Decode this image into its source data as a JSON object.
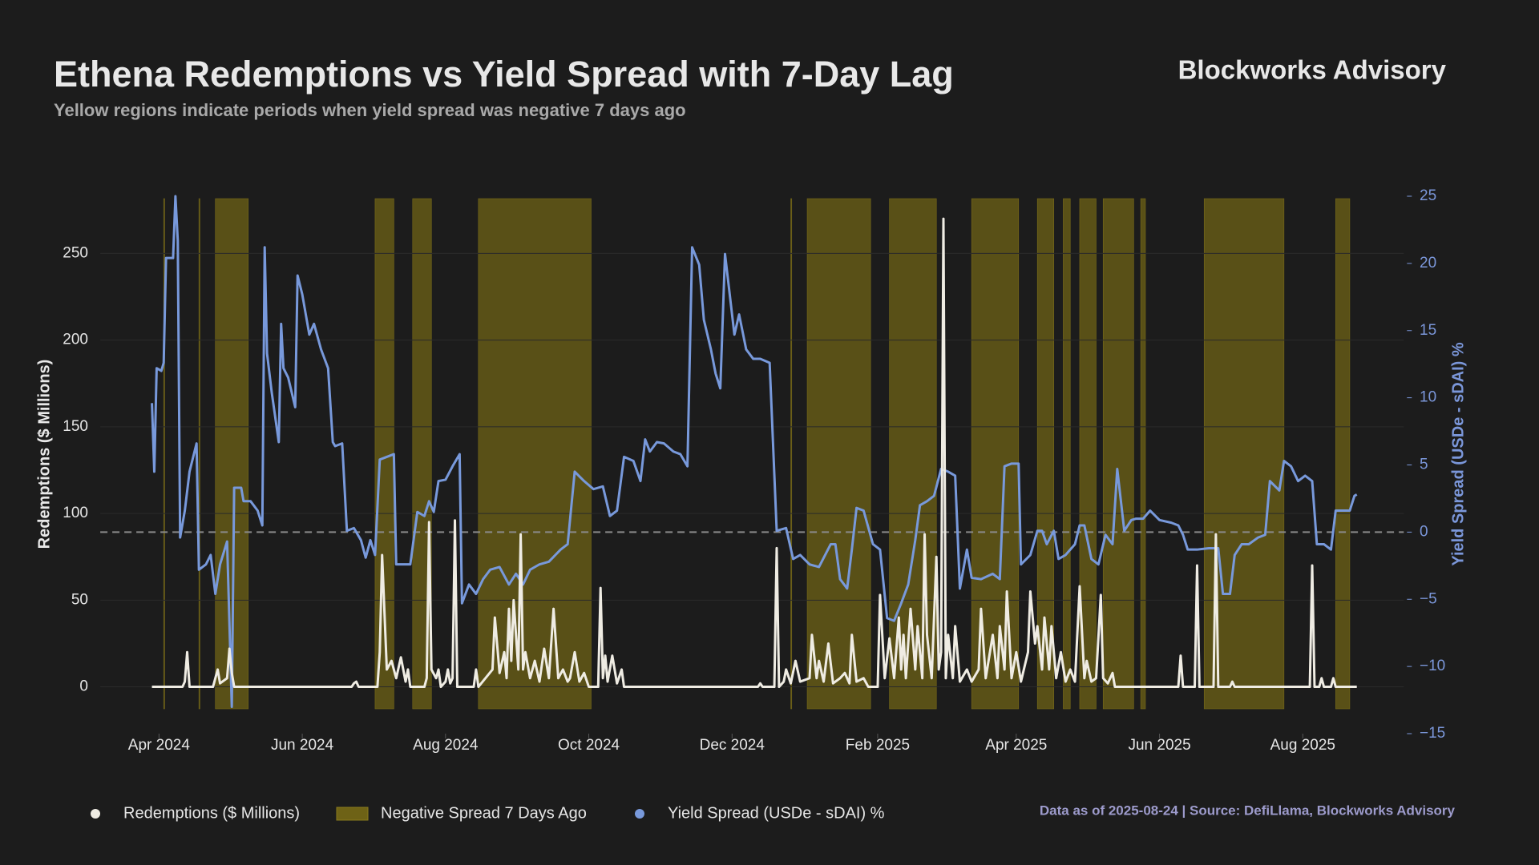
{
  "chart_data": {
    "type": "line",
    "title": "Ethena Redemptions vs Yield Spread with 7-Day Lag",
    "subtitle": "Yellow regions indicate periods when yield spread was negative 7 days ago",
    "brand": "Blockworks Advisory",
    "source": "Data as of 2025-08-24 | Source: DefiLlama, Blockworks Advisory",
    "ylabel": "Redemptions ($ Millions)",
    "y2label": "Yield Spread (USDe - sDAI) %",
    "xlim": [
      -25,
      530
    ],
    "xticks": [
      {
        "value": 0,
        "label": "Apr 2024"
      },
      {
        "value": 61,
        "label": "Jun 2024"
      },
      {
        "value": 122,
        "label": "Aug 2024"
      },
      {
        "value": 183,
        "label": "Oct 2024"
      },
      {
        "value": 244,
        "label": "Dec 2024"
      },
      {
        "value": 306,
        "label": "Feb 2025"
      },
      {
        "value": 365,
        "label": "Apr 2025"
      },
      {
        "value": 426,
        "label": "Jun 2025"
      },
      {
        "value": 487,
        "label": "Aug 2025"
      }
    ],
    "ylim": [
      -27,
      283
    ],
    "yticks": [
      0,
      50,
      100,
      150,
      200,
      250
    ],
    "y2lim": [
      -15,
      25
    ],
    "y2ticks": [
      {
        "value": -15,
        "label": "−15"
      },
      {
        "value": -10,
        "label": "−10"
      },
      {
        "value": -5,
        "label": "−5"
      },
      0,
      5,
      10,
      15,
      20,
      25
    ],
    "grid": true,
    "reference_line": {
      "axis": "y2",
      "value": 0,
      "color": "#8a8a8a"
    },
    "shaded": {
      "name": "Negative Spread 7 Days Ago",
      "color": "#6e6216",
      "spans": [
        [
          2,
          2.4
        ],
        [
          17,
          17.4
        ],
        [
          24,
          38
        ],
        [
          92,
          100
        ],
        [
          108,
          116
        ],
        [
          136,
          184
        ],
        [
          269,
          269.4
        ],
        [
          276,
          303
        ],
        [
          311,
          331
        ],
        [
          346,
          366
        ],
        [
          374,
          381
        ],
        [
          385,
          388
        ],
        [
          392,
          399
        ],
        [
          402,
          415
        ],
        [
          418,
          420
        ],
        [
          445,
          479
        ],
        [
          501,
          507
        ]
      ]
    },
    "series": [
      {
        "name": "Redemptions ($ Millions)",
        "color": "#efece3",
        "axis": "y",
        "x": [
          -3,
          10,
          11,
          12,
          13,
          23,
          24,
          25,
          26,
          29,
          30,
          31,
          32,
          82,
          83,
          84,
          85,
          93,
          94,
          95,
          97,
          99,
          101,
          103,
          105,
          106,
          107,
          113,
          114,
          115,
          116,
          118,
          119,
          120,
          122,
          123,
          124,
          125,
          126,
          127,
          134,
          135,
          136,
          142,
          143,
          145,
          147,
          148,
          149,
          150,
          151,
          153,
          154,
          155,
          156,
          158,
          160,
          162,
          164,
          166,
          168,
          170,
          172,
          174,
          175,
          177,
          179,
          181,
          183,
          187,
          188,
          189,
          190,
          191,
          193,
          195,
          197,
          198,
          255,
          256,
          257,
          262,
          263,
          264,
          266,
          267,
          269,
          271,
          273,
          277,
          278,
          280,
          281,
          283,
          285,
          287,
          290,
          292,
          294,
          295,
          297,
          300,
          302,
          306,
          307,
          309,
          311,
          313,
          315,
          316,
          317,
          318,
          320,
          322,
          323,
          325,
          326,
          327,
          329,
          331,
          332,
          333,
          334,
          335,
          336,
          338,
          339,
          341,
          344,
          346,
          349,
          350,
          352,
          355,
          357,
          358,
          360,
          361,
          363,
          365,
          367,
          370,
          371,
          373,
          374,
          376,
          377,
          379,
          380,
          382,
          384,
          386,
          388,
          390,
          392,
          394,
          395,
          397,
          399,
          401,
          402,
          404,
          406,
          407,
          434,
          435,
          436,
          441,
          442,
          443,
          449,
          450,
          451,
          456,
          457,
          458,
          490,
          491,
          492,
          494,
          495,
          496,
          499,
          500,
          501,
          510
        ],
        "values": [
          0,
          0,
          3,
          20,
          0,
          0,
          5,
          10,
          2,
          5,
          22,
          8,
          0,
          0,
          2,
          3,
          0,
          0,
          20,
          76,
          10,
          15,
          5,
          17,
          3,
          10,
          0,
          0,
          5,
          95,
          10,
          5,
          10,
          0,
          3,
          10,
          2,
          5,
          96,
          0,
          0,
          10,
          0,
          10,
          40,
          8,
          20,
          5,
          45,
          15,
          50,
          10,
          88,
          10,
          20,
          5,
          15,
          3,
          22,
          5,
          45,
          5,
          10,
          3,
          5,
          20,
          3,
          8,
          0,
          0,
          57,
          5,
          18,
          3,
          18,
          2,
          10,
          0,
          0,
          2,
          0,
          0,
          80,
          0,
          3,
          10,
          2,
          15,
          3,
          5,
          30,
          5,
          15,
          3,
          25,
          2,
          5,
          8,
          2,
          30,
          3,
          5,
          0,
          0,
          53,
          5,
          28,
          5,
          40,
          10,
          30,
          5,
          45,
          10,
          35,
          5,
          88,
          30,
          5,
          75,
          10,
          20,
          270,
          5,
          30,
          5,
          35,
          3,
          10,
          3,
          10,
          45,
          5,
          30,
          5,
          35,
          10,
          55,
          5,
          20,
          3,
          20,
          55,
          25,
          35,
          10,
          40,
          10,
          35,
          5,
          20,
          3,
          10,
          3,
          58,
          5,
          15,
          3,
          5,
          53,
          5,
          2,
          8,
          0,
          0,
          18,
          0,
          0,
          70,
          0,
          0,
          88,
          0,
          0,
          3,
          0,
          0,
          70,
          0,
          0,
          5,
          0,
          0,
          5,
          0,
          0
        ]
      },
      {
        "name": "Yield Spread (USDe - sDAI) %",
        "color": "#7899db",
        "axis": "y2",
        "x": [
          -3,
          -2,
          -1,
          1,
          2,
          3,
          5,
          6,
          7,
          8,
          9,
          11,
          13,
          16,
          17,
          20,
          22,
          24,
          26,
          29,
          31,
          32,
          35,
          36,
          39,
          42,
          44,
          45,
          46,
          48,
          51,
          52,
          53,
          55,
          58,
          59,
          61,
          64,
          66,
          69,
          72,
          74,
          75,
          78,
          80,
          83,
          86,
          88,
          90,
          92,
          94,
          97,
          100,
          101,
          104,
          107,
          110,
          113,
          115,
          117,
          119,
          122,
          125,
          128,
          129,
          132,
          135,
          138,
          141,
          145,
          149,
          152,
          155,
          158,
          162,
          166,
          171,
          174,
          177,
          181,
          185,
          189,
          192,
          195,
          198,
          202,
          205,
          207,
          209,
          212,
          215,
          219,
          222,
          225,
          227,
          230,
          232,
          235,
          237,
          239,
          241,
          243,
          245,
          247,
          250,
          253,
          256,
          260,
          263,
          267,
          270,
          273,
          277,
          281,
          286,
          288,
          290,
          293,
          295,
          297,
          300,
          304,
          307,
          310,
          313,
          316,
          319,
          322,
          324,
          327,
          330,
          333,
          336,
          339,
          341,
          344,
          346,
          350,
          355,
          358,
          360,
          363,
          366,
          367,
          371,
          374,
          376,
          378,
          381,
          383,
          386,
          390,
          392,
          394,
          397,
          400,
          403,
          406,
          408,
          411,
          414,
          416,
          419,
          422,
          426,
          431,
          434,
          436,
          438,
          442,
          447,
          451,
          453,
          456,
          458,
          461,
          464,
          468,
          471,
          473,
          477,
          479,
          482,
          485,
          488,
          491,
          493,
          496,
          499,
          501,
          504,
          507,
          509,
          510
        ],
        "values": [
          9.6,
          4.5,
          12.2,
          12,
          12.6,
          20.4,
          20.4,
          20.4,
          25,
          21.7,
          -0.4,
          1.6,
          4.5,
          6.6,
          -2.8,
          -2.4,
          -1.7,
          -4.6,
          -2.4,
          -0.7,
          -13,
          3.3,
          3.3,
          2.3,
          2.3,
          1.6,
          0.5,
          21.2,
          13.3,
          10.4,
          6.7,
          15.5,
          12.2,
          11.5,
          9.3,
          19.1,
          17.7,
          14.7,
          15.5,
          13.6,
          12.2,
          6.7,
          6.4,
          6.6,
          0.1,
          0.3,
          -0.6,
          -1.9,
          -0.6,
          -1.7,
          5.4,
          5.6,
          5.8,
          -2.4,
          -2.4,
          -2.4,
          1.5,
          1.2,
          2.3,
          1.5,
          3.8,
          3.9,
          4.9,
          5.8,
          -5.3,
          -3.9,
          -4.6,
          -3.5,
          -2.8,
          -2.6,
          -3.9,
          -3.1,
          -3.9,
          -2.8,
          -2.4,
          -2.2,
          -1.3,
          -0.9,
          4.5,
          3.8,
          3.2,
          3.4,
          1.2,
          1.6,
          5.6,
          5.3,
          3.8,
          6.9,
          6.0,
          6.7,
          6.6,
          6.0,
          5.8,
          4.9,
          21.2,
          19.9,
          15.8,
          13.6,
          11.8,
          10.7,
          20.7,
          17.7,
          14.7,
          16.2,
          13.6,
          12.9,
          12.9,
          12.6,
          0.1,
          0.3,
          -2,
          -1.7,
          -2.4,
          -2.6,
          -0.9,
          -0.9,
          -3.5,
          -4.2,
          -1.3,
          1.8,
          1.6,
          -0.9,
          -1.3,
          -6.4,
          -6.6,
          -5.3,
          -3.9,
          -0.6,
          2.0,
          2.3,
          2.7,
          4.7,
          4.5,
          4.2,
          -4.2,
          -1.3,
          -3.4,
          -3.5,
          -3.1,
          -3.5,
          4.9,
          5.1,
          5.1,
          -2.4,
          -1.7,
          0.1,
          0.1,
          -0.9,
          0.1,
          -2,
          -1.7,
          -0.9,
          0.5,
          0.5,
          -2,
          -2.4,
          -0.2,
          -0.9,
          4.7,
          0.1,
          0.9,
          1.0,
          1.0,
          1.6,
          0.9,
          0.7,
          0.5,
          -0.2,
          -1.3,
          -1.3,
          -1.2,
          -1.2,
          -4.6,
          -4.6,
          -1.7,
          -0.9,
          -0.9,
          -0.4,
          -0.2,
          3.8,
          3.1,
          5.3,
          4.9,
          3.8,
          4.2,
          3.8,
          -0.9,
          -0.9,
          -1.3,
          1.6,
          1.6,
          1.6,
          2.7,
          2.8
        ]
      }
    ]
  }
}
